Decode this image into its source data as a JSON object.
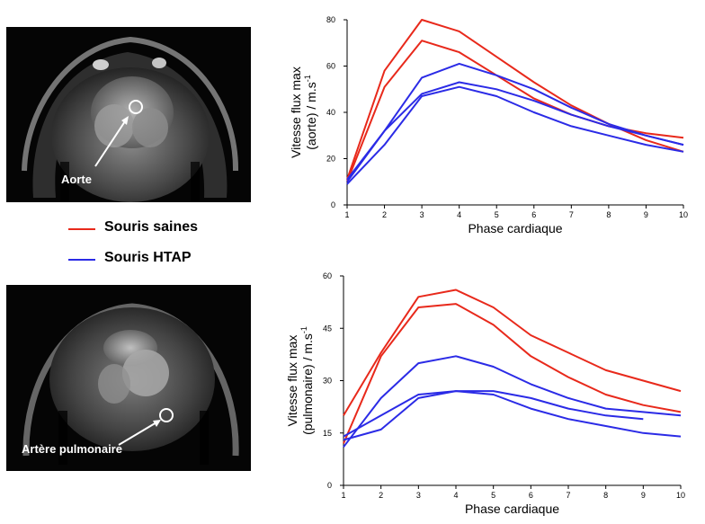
{
  "images": [
    {
      "label": "Aorte"
    },
    {
      "label": "Artère pulmonaire"
    }
  ],
  "legend": {
    "items": [
      {
        "label": "Souris saines",
        "color": "#e8291b"
      },
      {
        "label": "Souris HTAP",
        "color": "#2b2be6"
      }
    ]
  },
  "chart_data": [
    {
      "type": "line",
      "xlabel": "Phase cardiaque",
      "ylabel_line1": "Vitesse flux max",
      "ylabel_line2": "(aorte) / m.s",
      "ylabel_exponent": "-1",
      "x_ticks": [
        1,
        2,
        3,
        4,
        5,
        6,
        7,
        8,
        9,
        10
      ],
      "y_ticks": [
        0,
        20,
        40,
        60,
        80
      ],
      "xlim": [
        1,
        10
      ],
      "ylim": [
        0,
        80
      ],
      "series": [
        {
          "group": "Souris saines",
          "color": "#e8291b",
          "x": [
            1,
            2,
            3,
            4,
            5,
            6,
            7,
            8,
            9,
            10
          ],
          "y": [
            11,
            58,
            80,
            75,
            64,
            53,
            43,
            35,
            28,
            23
          ]
        },
        {
          "group": "Souris saines",
          "color": "#e8291b",
          "x": [
            1,
            2,
            3,
            4,
            5,
            6,
            7,
            8,
            9,
            10
          ],
          "y": [
            10,
            51,
            71,
            66,
            56,
            46,
            39,
            34,
            31,
            29
          ]
        },
        {
          "group": "Souris HTAP",
          "color": "#2b2be6",
          "x": [
            1,
            2,
            3,
            4,
            5,
            6,
            7,
            8,
            9,
            10
          ],
          "y": [
            10,
            32,
            55,
            61,
            56,
            50,
            42,
            35,
            30,
            26
          ]
        },
        {
          "group": "Souris HTAP",
          "color": "#2b2be6",
          "x": [
            1,
            2,
            3,
            4,
            5,
            6,
            7,
            8,
            9,
            10
          ],
          "y": [
            11,
            32,
            48,
            53,
            50,
            45,
            39,
            34,
            30,
            26
          ]
        },
        {
          "group": "Souris HTAP",
          "color": "#2b2be6",
          "x": [
            1,
            2,
            3,
            4,
            5,
            6,
            7,
            8,
            9,
            10
          ],
          "y": [
            9,
            26,
            47,
            51,
            47,
            40,
            34,
            30,
            26,
            23
          ]
        }
      ]
    },
    {
      "type": "line",
      "xlabel": "Phase cardiaque",
      "ylabel_line1": "Vitesse flux max",
      "ylabel_line2": "(pulmonaire) / m.s",
      "ylabel_exponent": "-1",
      "x_ticks": [
        1,
        2,
        3,
        4,
        5,
        6,
        7,
        8,
        9,
        10
      ],
      "y_ticks": [
        0,
        15,
        30,
        45,
        60
      ],
      "xlim": [
        1,
        10
      ],
      "ylim": [
        0,
        60
      ],
      "series": [
        {
          "group": "Souris saines",
          "color": "#e8291b",
          "x": [
            1,
            2,
            3,
            4,
            5,
            6,
            7,
            8,
            9,
            10
          ],
          "y": [
            20,
            38,
            54,
            56,
            51,
            43,
            38,
            33,
            30,
            27
          ]
        },
        {
          "group": "Souris saines",
          "color": "#e8291b",
          "x": [
            1,
            2,
            3,
            4,
            5,
            6,
            7,
            8,
            9,
            10
          ],
          "y": [
            12,
            37,
            51,
            52,
            46,
            37,
            31,
            26,
            23,
            21
          ]
        },
        {
          "group": "Souris HTAP",
          "color": "#2b2be6",
          "x": [
            1,
            2,
            3,
            4,
            5,
            6,
            7,
            8,
            9,
            10
          ],
          "y": [
            11,
            25,
            35,
            37,
            34,
            29,
            25,
            22,
            21,
            20
          ]
        },
        {
          "group": "Souris HTAP",
          "color": "#2b2be6",
          "x": [
            1,
            2,
            3,
            4,
            5,
            6,
            7,
            8,
            9
          ],
          "y": [
            14,
            20,
            26,
            27,
            27,
            25,
            22,
            20,
            19
          ]
        },
        {
          "group": "Souris HTAP",
          "color": "#2b2be6",
          "x": [
            1,
            2,
            3,
            4,
            5,
            6,
            7,
            8,
            9,
            10
          ],
          "y": [
            13,
            16,
            25,
            27,
            26,
            22,
            19,
            17,
            15,
            14
          ]
        }
      ]
    }
  ]
}
